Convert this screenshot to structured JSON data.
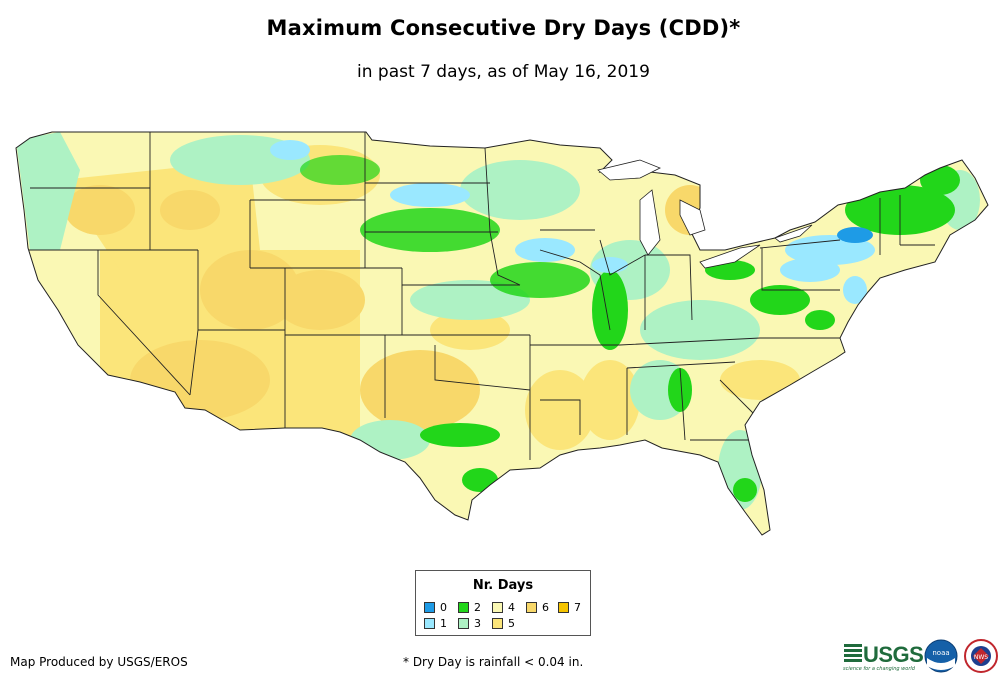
{
  "header": {
    "title": "Maximum Consecutive Dry Days (CDD)*",
    "subtitle": "in past 7 days, as of May 16, 2019"
  },
  "legend": {
    "title": "Nr. Days",
    "items": [
      {
        "label": "0",
        "color": "#1e9be6"
      },
      {
        "label": "1",
        "color": "#9ae8ff"
      },
      {
        "label": "2",
        "color": "#22d61a"
      },
      {
        "label": "3",
        "color": "#aef2c4"
      },
      {
        "label": "4",
        "color": "#faf8b4"
      },
      {
        "label": "5",
        "color": "#fbe57a"
      },
      {
        "label": "6",
        "color": "#f8d86a"
      },
      {
        "label": "7",
        "color": "#f5c400"
      }
    ]
  },
  "footer": {
    "credit": "Map Produced by USGS/EROS",
    "note": "* Dry Day is rainfall < 0.04 in."
  },
  "logos": {
    "usgs": "USGS",
    "usgs_tagline": "science for a changing world",
    "noaa": "noaa",
    "nws": "NWS"
  }
}
